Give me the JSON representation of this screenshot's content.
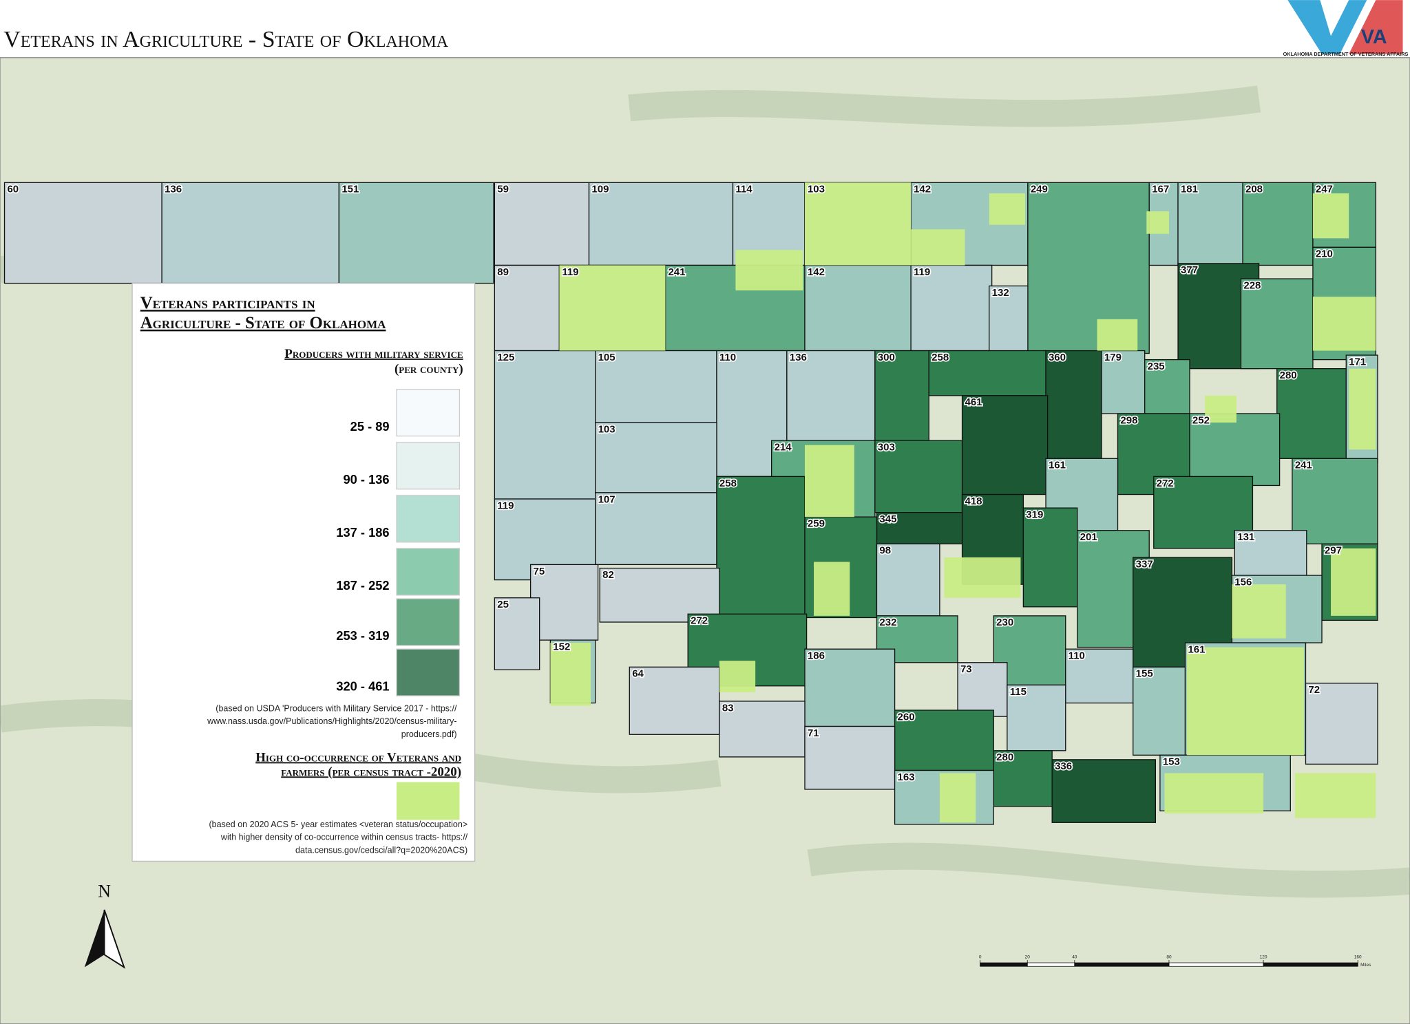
{
  "header": {
    "title": "Veterans in Agriculture - State of Oklahoma",
    "logo_text": "OKLAHOMA DEPARTMENT OF VETERANS AFFAIRS",
    "logo_mark": "VA"
  },
  "legend": {
    "title_lines": [
      "Veterans participants in",
      "Agriculture - State of Oklahoma"
    ],
    "producers_heading_lines": [
      "Producers with military service",
      "(per county)"
    ],
    "classes": [
      {
        "label": "25 - 89",
        "color": "#f6fafc",
        "map_color": "#c9d4d9"
      },
      {
        "label": "90 - 136",
        "color": "#e5f2f0",
        "map_color": "#b6cfd1"
      },
      {
        "label": "137 - 186",
        "color": "#b4e0d3",
        "map_color": "#9cc8bd"
      },
      {
        "label": "187 - 252",
        "color": "#8ccbad",
        "map_color": "#5eab84"
      },
      {
        "label": "253 - 319",
        "color": "#68aa84",
        "map_color": "#2f7f4f"
      },
      {
        "label": "320 - 461",
        "color": "#4f8567",
        "map_color": "#1d5834"
      }
    ],
    "producers_note_lines": [
      "(based on USDA 'Producers with Military Service 2017 - https://",
      "www.nass.usda.gov/Publications/Highlights/2020/census-military-",
      "producers.pdf)"
    ],
    "tract_heading_lines": [
      "High co-occurrence of Veterans and",
      "farmers (per census tract -2020)"
    ],
    "tract_color": "#c9ed85",
    "tract_note_lines": [
      "(based on 2020 ACS 5- year estimates <veteran status/occupation>",
      "with higher density of co-occurrence within census tracts- https://",
      "data.census.gov/cedsci/all?q=2020%20ACS)"
    ]
  },
  "north_arrow": "N",
  "scale_bar": {
    "ticks": [
      0,
      20,
      40,
      80,
      120,
      160
    ],
    "unit": "Miles"
  },
  "counties": [
    60,
    136,
    151,
    59,
    109,
    114,
    103,
    142,
    249,
    167,
    181,
    208,
    247,
    89,
    119,
    241,
    142,
    119,
    132,
    377,
    228,
    210,
    125,
    105,
    110,
    136,
    300,
    258,
    360,
    179,
    235,
    280,
    171,
    461,
    103,
    214,
    303,
    298,
    252,
    161,
    241,
    107,
    119,
    258,
    272,
    418,
    319,
    345,
    259,
    201,
    131,
    297,
    98,
    337,
    75,
    82,
    156,
    25,
    272,
    232,
    230,
    152,
    186,
    110,
    64,
    73,
    155,
    161,
    72,
    115,
    83,
    260,
    71,
    280,
    336,
    153,
    163
  ]
}
